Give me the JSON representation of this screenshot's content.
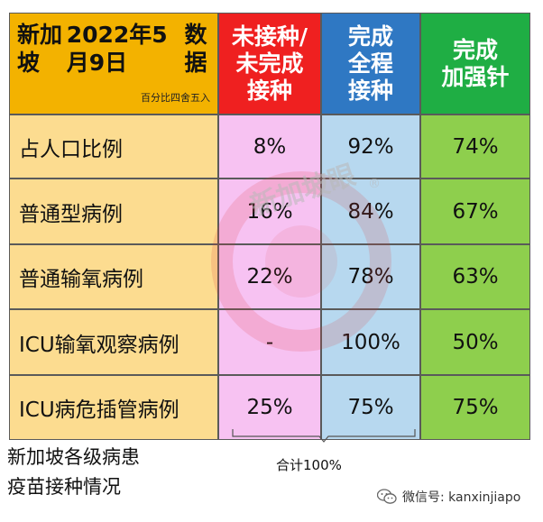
{
  "header": {
    "title_line1": "新加坡",
    "title_line2": "2022年5月9日",
    "title_line3": "数据",
    "note": "百分比四舍五入",
    "col_unvax": "未接种/\n未完成\n接种",
    "col_full": "完成\n全程\n接种",
    "col_booster": "完成\n加强针"
  },
  "rows": [
    {
      "label": "占人口比例",
      "unvax": "8%",
      "full": "92%",
      "booster": "74%"
    },
    {
      "label": "普通型病例",
      "unvax": "16%",
      "full": "84%",
      "booster": "67%"
    },
    {
      "label": "普通输氧病例",
      "unvax": "22%",
      "full": "78%",
      "booster": "63%"
    },
    {
      "label": "ICU输氧观察病例",
      "unvax": "-",
      "full": "100%",
      "booster": "50%"
    },
    {
      "label": "ICU病危插管病例",
      "unvax": "25%",
      "full": "75%",
      "booster": "75%"
    }
  ],
  "caption": {
    "line1": "新加坡各级病患",
    "line2": "疫苗接种情况"
  },
  "sum_label": "合计100%",
  "watermark": {
    "text": "新加坡眼",
    "symbol": "®"
  },
  "wechat": {
    "icon": "wechat-icon",
    "text": "微信号: kanxinjiapo"
  },
  "colors": {
    "orange_header": "#f3b200",
    "orange_cell": "#fcdc90",
    "red_header": "#ef2020",
    "pink_cell": "#f7c2f2",
    "blue_header": "#2f78c3",
    "blue_cell": "#b7d8ef",
    "green_header": "#1fae44",
    "green_cell": "#8ecf4d"
  }
}
